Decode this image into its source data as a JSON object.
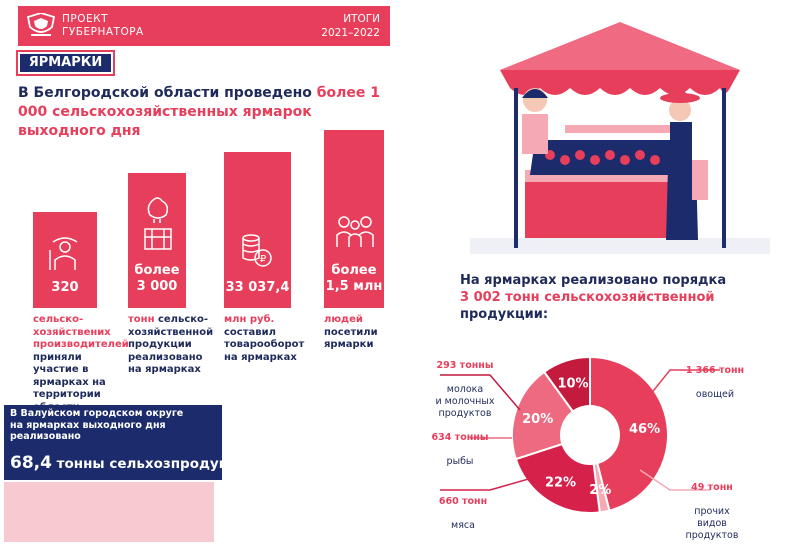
{
  "header": {
    "project": "ПРОЕКТ\nГУБЕРНАТОРА",
    "title": "ИТОГИ\n2021–2022"
  },
  "section_tag": "ЯРМАРКИ",
  "headline": {
    "text": "В Белгородской области проведено ",
    "highlight": "более 1 000 сельскохозяйственных ярмарок выходного дня"
  },
  "stats": [
    {
      "value": "320",
      "caption_pink": "сельско-хозяйствених производителей",
      "caption": "приняли участие в ярмарках на территории области",
      "icon": "farmer-icon"
    },
    {
      "value": "более\n3 000",
      "caption_pink": "тонн",
      "caption": "сельско-хозяйственной продукции реализовано на ярмарках",
      "icon": "chicken-icon"
    },
    {
      "value": "33 037,4",
      "caption_pink": "млн руб.",
      "caption": "составил товарооборот на ярмарках",
      "icon": "coins-icon"
    },
    {
      "value": "более\n1,5 млн",
      "caption_pink": "людей",
      "caption": "посетили ярмарки",
      "icon": "people-icon"
    }
  ],
  "valuyki": {
    "text": "В Валуйском городском округе\nна ярмарках выходного дня\nреализовано",
    "number": "68,4",
    "unit": " тонны сельхозпродукции"
  },
  "pie": {
    "title_pre": "На ярмарках реализовано порядка",
    "title_highlight": "3 002 тонн сельскохозяйственной",
    "title_post": "продукции:",
    "labels": [
      {
        "amount": "293 тонны",
        "text": "молока\nи молочных\nпродуктов"
      },
      {
        "amount": "634 тонны",
        "text": "рыбы"
      },
      {
        "amount": "660 тонн",
        "text": "мяса"
      },
      {
        "amount": "1 366 тонн",
        "text": "овощей"
      },
      {
        "amount": "49 тонн",
        "text": "прочих\nвидов\nпродуктов"
      }
    ]
  },
  "chart_data": {
    "type": "pie",
    "categories": [
      "овощей",
      "прочих видов продуктов",
      "мяса",
      "рыбы",
      "молока и молочных продуктов"
    ],
    "values": [
      46,
      2,
      22,
      20,
      10
    ],
    "labels": [
      "46%",
      "2%",
      "22%",
      "20%",
      "10%"
    ],
    "colors": [
      "#e73e5b",
      "#f4a9b5",
      "#d6214a",
      "#ee6a80",
      "#c41a3d"
    ]
  }
}
